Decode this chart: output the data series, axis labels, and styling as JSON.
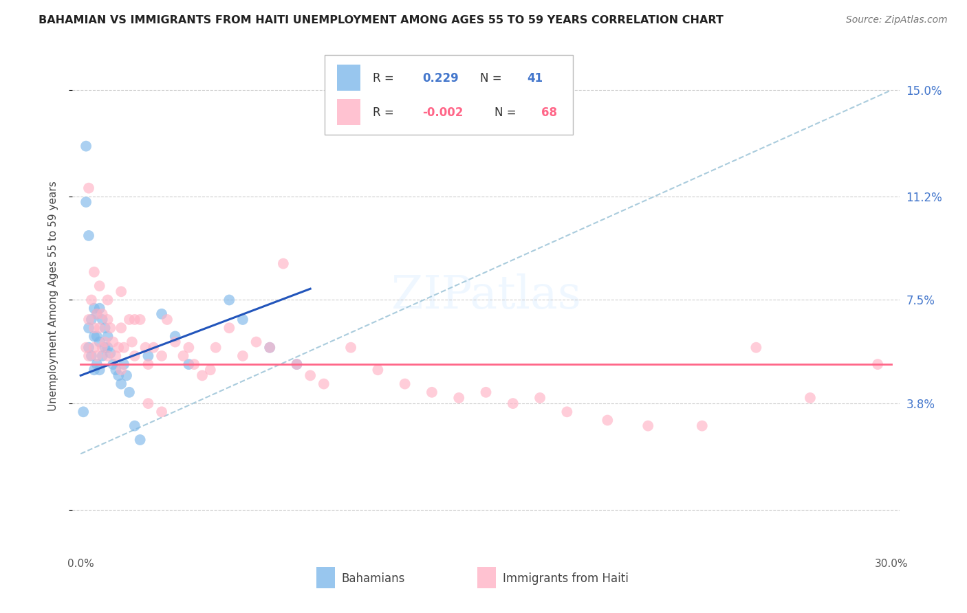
{
  "title": "BAHAMIAN VS IMMIGRANTS FROM HAITI UNEMPLOYMENT AMONG AGES 55 TO 59 YEARS CORRELATION CHART",
  "source": "Source: ZipAtlas.com",
  "ylabel": "Unemployment Among Ages 55 to 59 years",
  "xlim": [
    0.0,
    0.3
  ],
  "ylim": [
    -0.015,
    0.168
  ],
  "ytick_positions": [
    0.0,
    0.038,
    0.075,
    0.112,
    0.15
  ],
  "ytick_labels_right": [
    "",
    "3.8%",
    "7.5%",
    "11.2%",
    "15.0%"
  ],
  "blue_color": "#7EB8EA",
  "pink_color": "#FFB3C6",
  "blue_line_color": "#2255BB",
  "pink_line_color": "#FF6688",
  "dashed_line_color": "#AACCDD",
  "grid_color": "#CCCCCC",
  "bah_x": [
    0.001,
    0.002,
    0.002,
    0.003,
    0.003,
    0.003,
    0.004,
    0.004,
    0.005,
    0.005,
    0.005,
    0.006,
    0.006,
    0.006,
    0.007,
    0.007,
    0.007,
    0.008,
    0.008,
    0.009,
    0.009,
    0.01,
    0.01,
    0.011,
    0.012,
    0.013,
    0.014,
    0.015,
    0.016,
    0.017,
    0.018,
    0.02,
    0.022,
    0.025,
    0.03,
    0.035,
    0.04,
    0.055,
    0.06,
    0.07,
    0.08
  ],
  "bah_y": [
    0.035,
    0.13,
    0.11,
    0.098,
    0.065,
    0.058,
    0.068,
    0.055,
    0.072,
    0.062,
    0.05,
    0.07,
    0.062,
    0.052,
    0.072,
    0.06,
    0.05,
    0.068,
    0.055,
    0.065,
    0.058,
    0.062,
    0.058,
    0.056,
    0.052,
    0.05,
    0.048,
    0.045,
    0.052,
    0.048,
    0.042,
    0.03,
    0.025,
    0.055,
    0.07,
    0.062,
    0.052,
    0.075,
    0.068,
    0.058,
    0.052
  ],
  "haiti_x": [
    0.002,
    0.003,
    0.003,
    0.004,
    0.005,
    0.005,
    0.006,
    0.006,
    0.007,
    0.008,
    0.008,
    0.009,
    0.01,
    0.01,
    0.011,
    0.012,
    0.013,
    0.014,
    0.015,
    0.015,
    0.016,
    0.018,
    0.019,
    0.02,
    0.022,
    0.024,
    0.025,
    0.027,
    0.03,
    0.032,
    0.035,
    0.038,
    0.04,
    0.042,
    0.045,
    0.048,
    0.05,
    0.055,
    0.06,
    0.065,
    0.07,
    0.075,
    0.08,
    0.085,
    0.09,
    0.1,
    0.11,
    0.12,
    0.13,
    0.14,
    0.15,
    0.16,
    0.17,
    0.18,
    0.195,
    0.21,
    0.23,
    0.25,
    0.27,
    0.295,
    0.003,
    0.005,
    0.007,
    0.01,
    0.015,
    0.02,
    0.025,
    0.03
  ],
  "haiti_y": [
    0.058,
    0.068,
    0.055,
    0.075,
    0.065,
    0.058,
    0.07,
    0.055,
    0.065,
    0.07,
    0.058,
    0.06,
    0.068,
    0.055,
    0.065,
    0.06,
    0.055,
    0.058,
    0.065,
    0.05,
    0.058,
    0.068,
    0.06,
    0.068,
    0.068,
    0.058,
    0.052,
    0.058,
    0.055,
    0.068,
    0.06,
    0.055,
    0.058,
    0.052,
    0.048,
    0.05,
    0.058,
    0.065,
    0.055,
    0.06,
    0.058,
    0.088,
    0.052,
    0.048,
    0.045,
    0.058,
    0.05,
    0.045,
    0.042,
    0.04,
    0.042,
    0.038,
    0.04,
    0.035,
    0.032,
    0.03,
    0.03,
    0.058,
    0.04,
    0.052,
    0.115,
    0.085,
    0.08,
    0.075,
    0.078,
    0.055,
    0.038,
    0.035
  ]
}
